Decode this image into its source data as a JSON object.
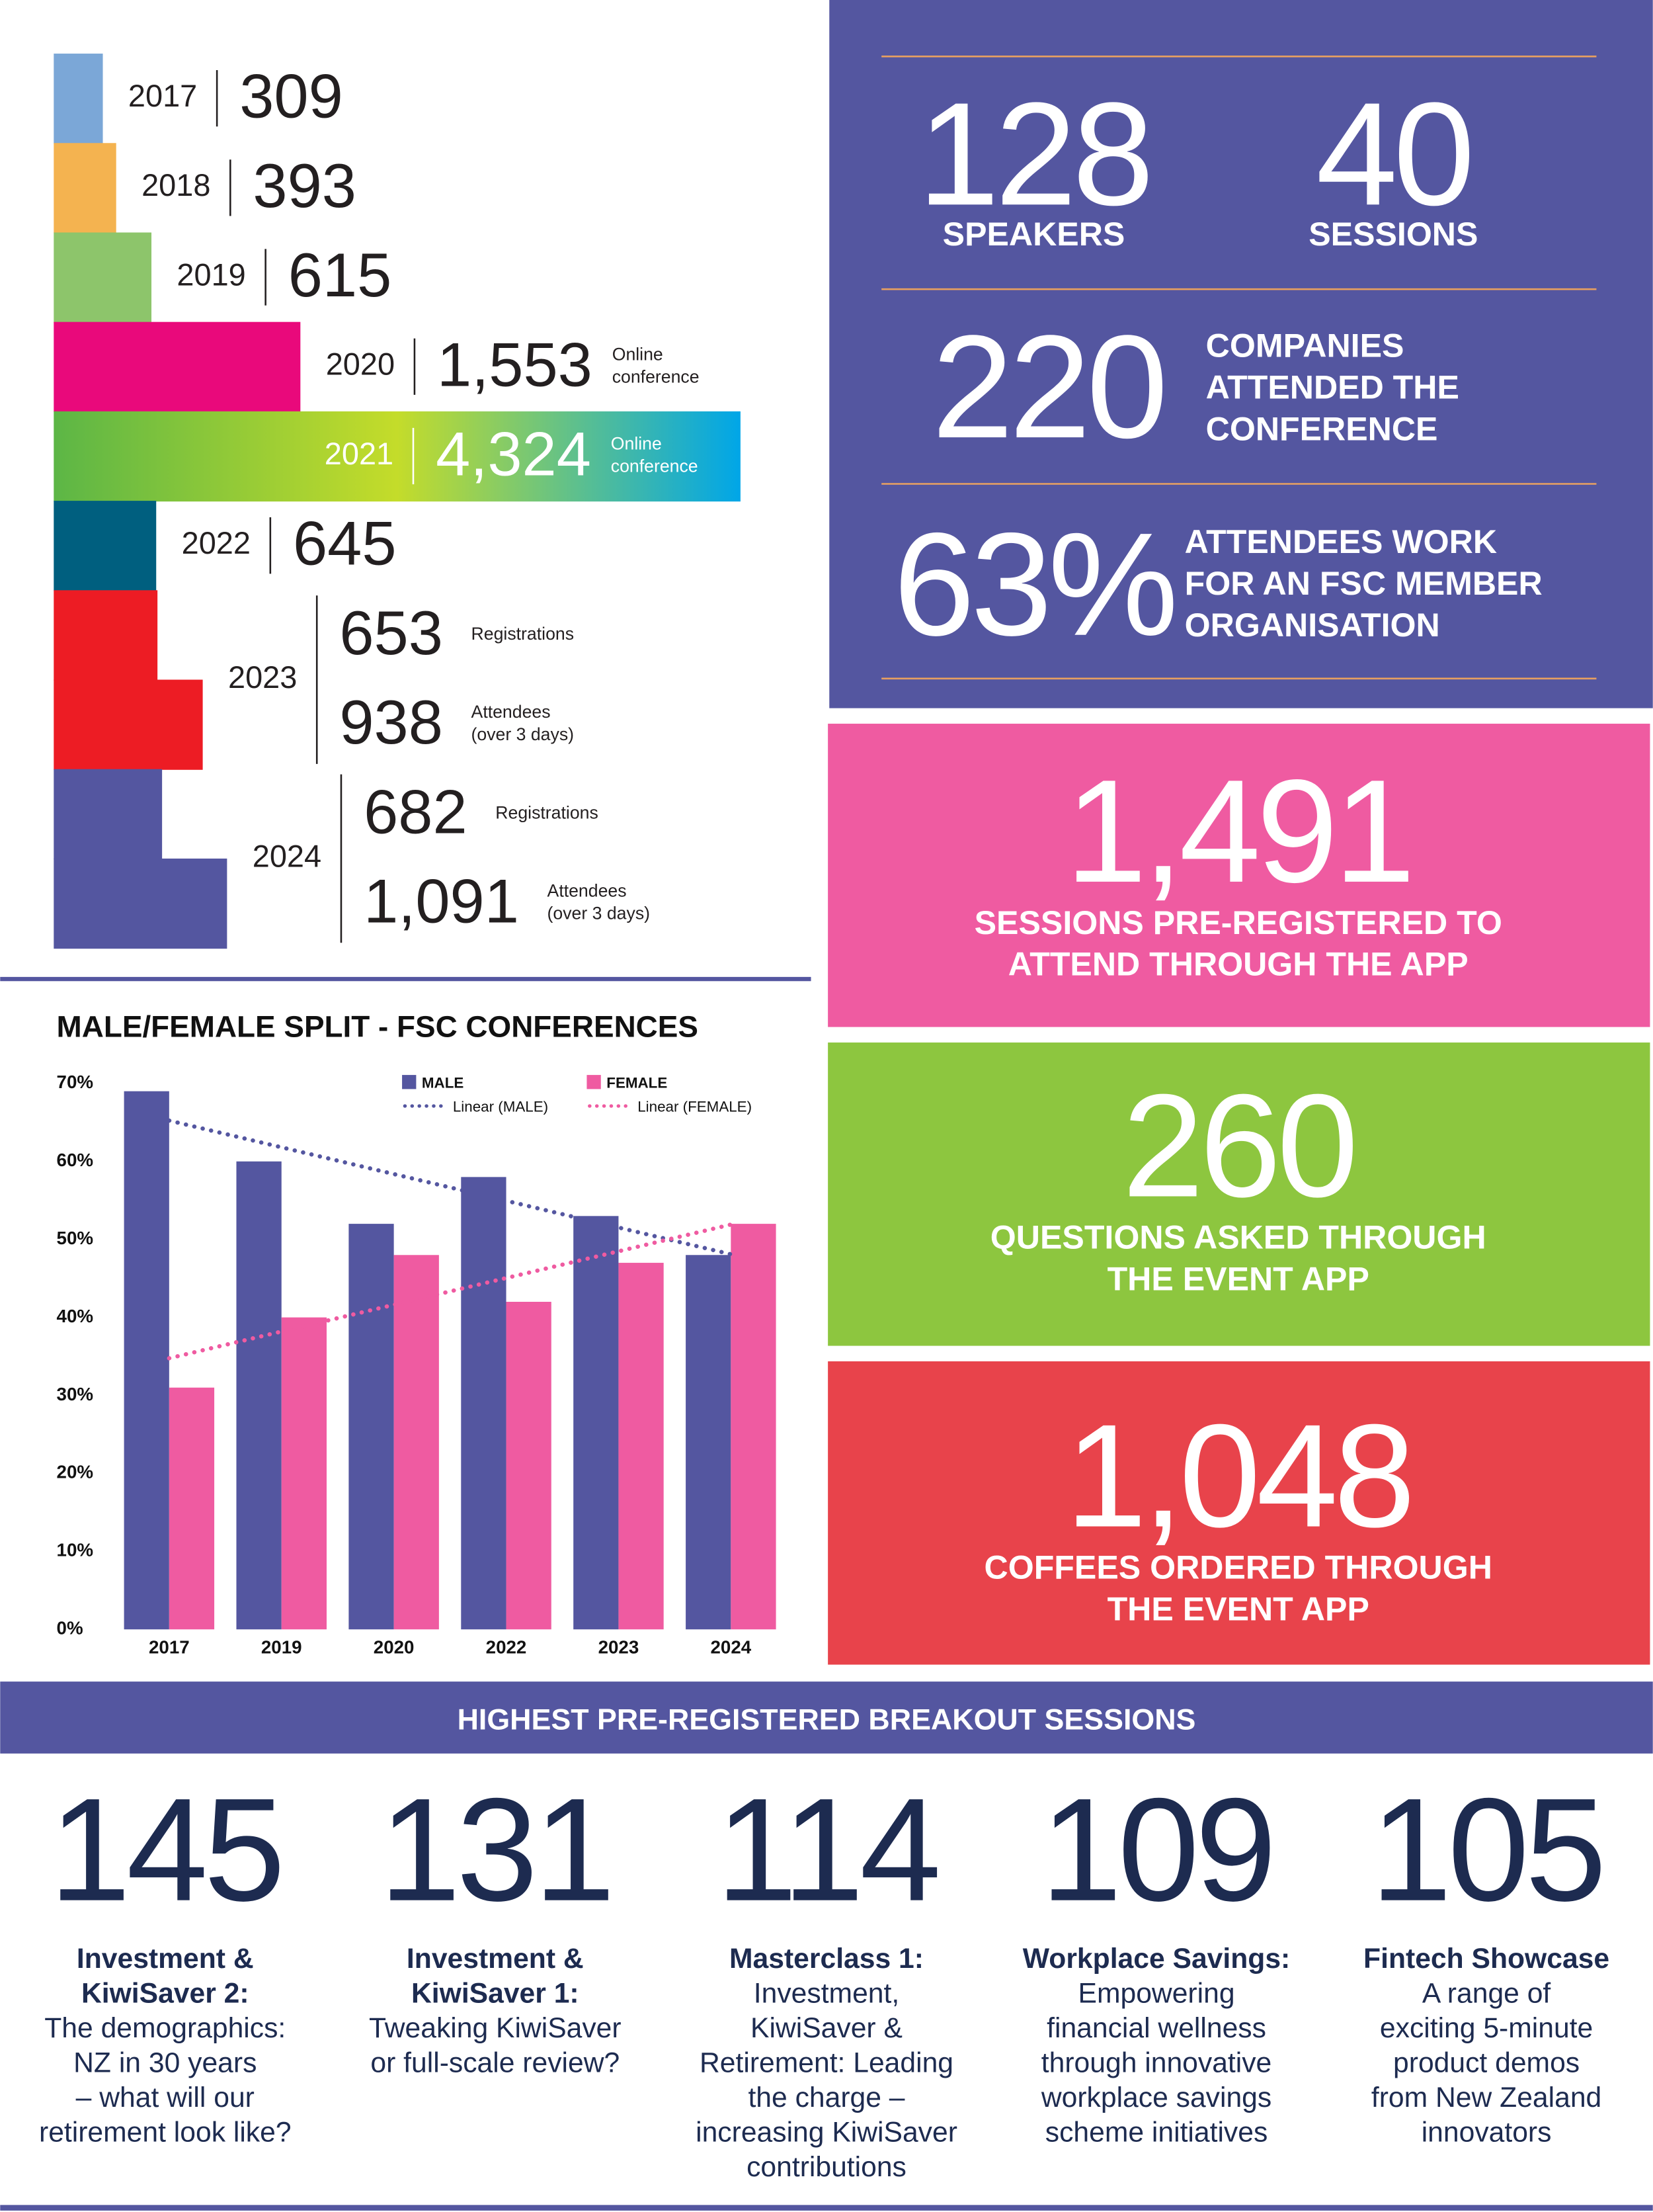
{
  "chart_data": [
    {
      "type": "hbar",
      "rows": [
        {
          "category": "2017",
          "values": [
            309
          ],
          "value_labels": [
            "309"
          ],
          "color": "#7ba7d7"
        },
        {
          "category": "2018",
          "values": [
            393
          ],
          "value_labels": [
            "393"
          ],
          "color": "#f4b350"
        },
        {
          "category": "2019",
          "values": [
            615
          ],
          "value_labels": [
            "615"
          ],
          "color": "#8dc56b"
        },
        {
          "category": "2020",
          "values": [
            1553
          ],
          "value_labels": [
            "1,553"
          ],
          "notes": [
            [
              "Online",
              "conference"
            ]
          ],
          "color": "#e9097b"
        },
        {
          "category": "2021",
          "values": [
            4324
          ],
          "value_labels": [
            "4,324"
          ],
          "notes": [
            [
              "Online",
              "conference"
            ]
          ],
          "gradient": [
            "#5cb646",
            "#c4dc2a",
            "#00a6e8"
          ]
        },
        {
          "category": "2022",
          "values": [
            645
          ],
          "value_labels": [
            "645"
          ],
          "color": "#005f7f"
        },
        {
          "category": "2023",
          "values": [
            653,
            938
          ],
          "value_labels": [
            "653",
            "938"
          ],
          "notes": [
            [
              "Registrations"
            ],
            [
              "Attendees",
              "(over 3 days)"
            ]
          ],
          "color": "#ed1c24"
        },
        {
          "category": "2024",
          "values": [
            682,
            1091
          ],
          "value_labels": [
            "682",
            "1,091"
          ],
          "notes": [
            [
              "Registrations"
            ],
            [
              "Attendees",
              "(over 3 days)"
            ]
          ],
          "color": "#5456a0"
        }
      ]
    },
    {
      "type": "grouped-bar",
      "title": "MALE/FEMALE SPLIT - FSC CONFERENCES",
      "categories": [
        "2017",
        "2019",
        "2020",
        "2022",
        "2023",
        "2024"
      ],
      "series": [
        {
          "name": "MALE",
          "trendline": "Linear (MALE)",
          "color": "#5456a0",
          "values": [
            69,
            60,
            52,
            58,
            53,
            48
          ]
        },
        {
          "name": "FEMALE",
          "trendline": "Linear (FEMALE)",
          "color": "#ef5ba1",
          "values": [
            31,
            40,
            48,
            42,
            47,
            52
          ]
        }
      ],
      "ylim": [
        0,
        70
      ],
      "yticks": [
        {
          "value": 0,
          "label": "0%"
        },
        {
          "value": 10,
          "label": "10%"
        },
        {
          "value": 20,
          "label": "20%"
        },
        {
          "value": 30,
          "label": "30%"
        },
        {
          "value": 40,
          "label": "40%"
        },
        {
          "value": 50,
          "label": "50%"
        },
        {
          "value": 60,
          "label": "60%"
        },
        {
          "value": 70,
          "label": "70%"
        }
      ]
    }
  ],
  "stats": {
    "pair": [
      {
        "value": "128",
        "label": "SPEAKERS"
      },
      {
        "value": "40",
        "label": "SESSIONS"
      }
    ],
    "companies": {
      "value": "220",
      "label": [
        "COMPANIES",
        "ATTENDED THE",
        "CONFERENCE"
      ]
    },
    "members": {
      "value": "63%",
      "label": [
        "ATTENDEES WORK",
        "FOR AN FSC MEMBER",
        "ORGANISATION"
      ]
    }
  },
  "app_stats": [
    {
      "value": "1,491",
      "label": [
        "SESSIONS PRE-REGISTERED TO",
        "ATTEND THROUGH THE APP"
      ],
      "color": "#ef5ba1"
    },
    {
      "value": "260",
      "label": [
        "QUESTIONS ASKED THROUGH",
        "THE EVENT APP"
      ],
      "color": "#8dc63f"
    },
    {
      "value": "1,048",
      "label": [
        "COFFEES ORDERED THROUGH",
        "THE EVENT APP"
      ],
      "color": "#e8434b"
    }
  ],
  "breakout": {
    "title": "HIGHEST PRE-REGISTERED BREAKOUT SESSIONS",
    "sessions": [
      {
        "count": "145",
        "title": [
          "Investment &",
          "KiwiSaver 2:"
        ],
        "description": [
          "The demographics:",
          "NZ in 30 years",
          "– what will our",
          "retirement look like?"
        ]
      },
      {
        "count": "131",
        "title": [
          "Investment &",
          "KiwiSaver 1:"
        ],
        "description": [
          "Tweaking KiwiSaver",
          "or full-scale review?"
        ]
      },
      {
        "count": "114",
        "title": [
          "Masterclass 1:"
        ],
        "description": [
          "Investment,",
          "KiwiSaver &",
          "Retirement: Leading",
          "the charge –",
          "increasing KiwiSaver",
          "contributions"
        ]
      },
      {
        "count": "109",
        "title": [
          "Workplace Savings:"
        ],
        "description": [
          "Empowering",
          "financial wellness",
          "through innovative",
          "workplace savings",
          "scheme initiatives"
        ]
      },
      {
        "count": "105",
        "title": [
          "Fintech Showcase"
        ],
        "description": [
          "A range of",
          "exciting 5-minute",
          "product demos",
          "from New Zealand",
          "innovators"
        ]
      }
    ]
  }
}
